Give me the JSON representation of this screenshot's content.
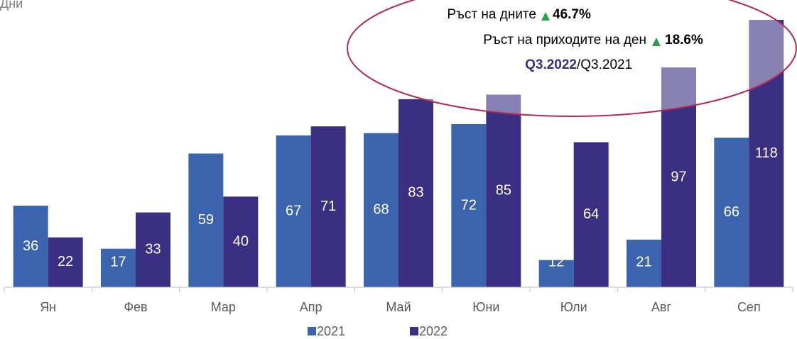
{
  "chart_data": {
    "type": "bar",
    "title": "Дни",
    "categories": [
      "Ян",
      "Фев",
      "Мар",
      "Апр",
      "Май",
      "Юни",
      "Юли",
      "Авг",
      "Сеп"
    ],
    "series": [
      {
        "name": "2021",
        "color": "#3c63ae",
        "values": [
          36,
          17,
          59,
          67,
          68,
          72,
          12,
          21,
          66
        ]
      },
      {
        "name": "2022",
        "color": "#3a2f82",
        "values": [
          22,
          33,
          40,
          71,
          83,
          85,
          64,
          97,
          118
        ]
      }
    ],
    "annotation": {
      "line1": {
        "text": "Ръст на дните",
        "value": "46.7%"
      },
      "line2": {
        "text": "Ръст на приходите на ден",
        "value": "18.6%"
      },
      "line3": {
        "highlight": "Q3.2022",
        "text": "/Q3.2021"
      }
    },
    "legend": "bottom"
  }
}
